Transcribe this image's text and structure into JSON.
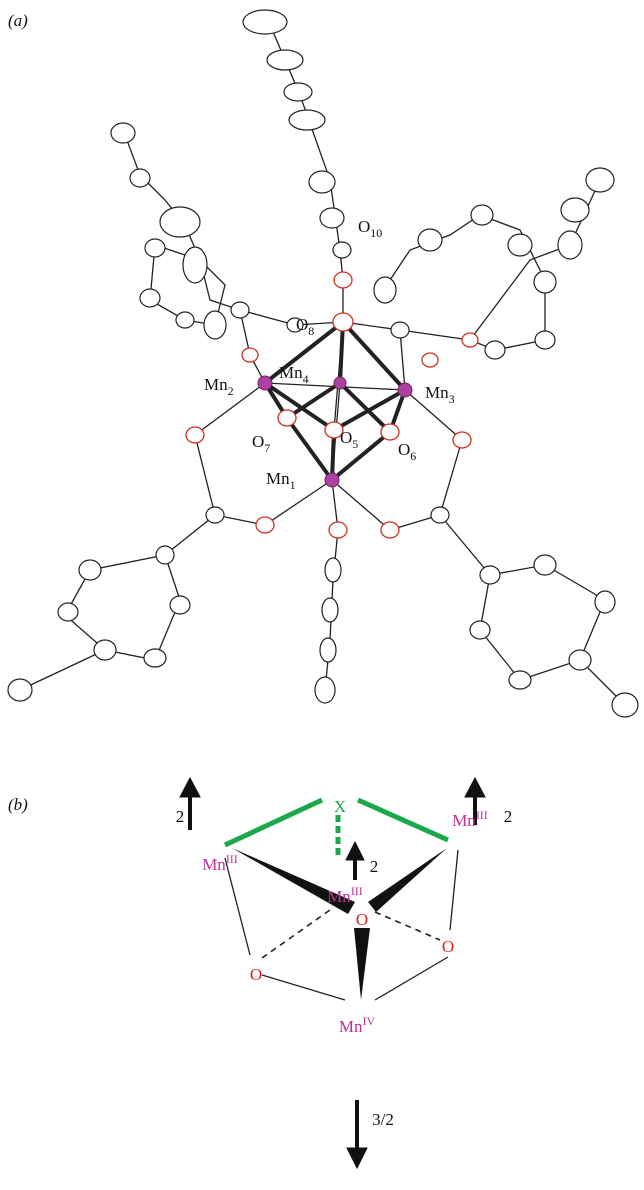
{
  "panel_a": {
    "label": "(a)",
    "atoms": [
      {
        "symbol": "O",
        "sub": "10"
      },
      {
        "symbol": "O",
        "sub": "8"
      },
      {
        "symbol": "Mn",
        "sub": "2"
      },
      {
        "symbol": "Mn",
        "sub": "4"
      },
      {
        "symbol": "Mn",
        "sub": "3"
      },
      {
        "symbol": "O",
        "sub": "7"
      },
      {
        "symbol": "O",
        "sub": "5"
      },
      {
        "symbol": "O",
        "sub": "6"
      },
      {
        "symbol": "Mn",
        "sub": "1"
      }
    ]
  },
  "panel_b": {
    "label": "(b)",
    "nodes": [
      {
        "symbol": "X"
      },
      {
        "symbol": "Mn",
        "sup": "III"
      },
      {
        "symbol": "Mn",
        "sup": "III"
      },
      {
        "symbol": "Mn",
        "sup": "III"
      },
      {
        "symbol": "O"
      },
      {
        "symbol": "O"
      },
      {
        "symbol": "O"
      },
      {
        "symbol": "Mn",
        "sup": "IV"
      }
    ],
    "spins": [
      "2",
      "2",
      "2",
      "3/2"
    ]
  }
}
